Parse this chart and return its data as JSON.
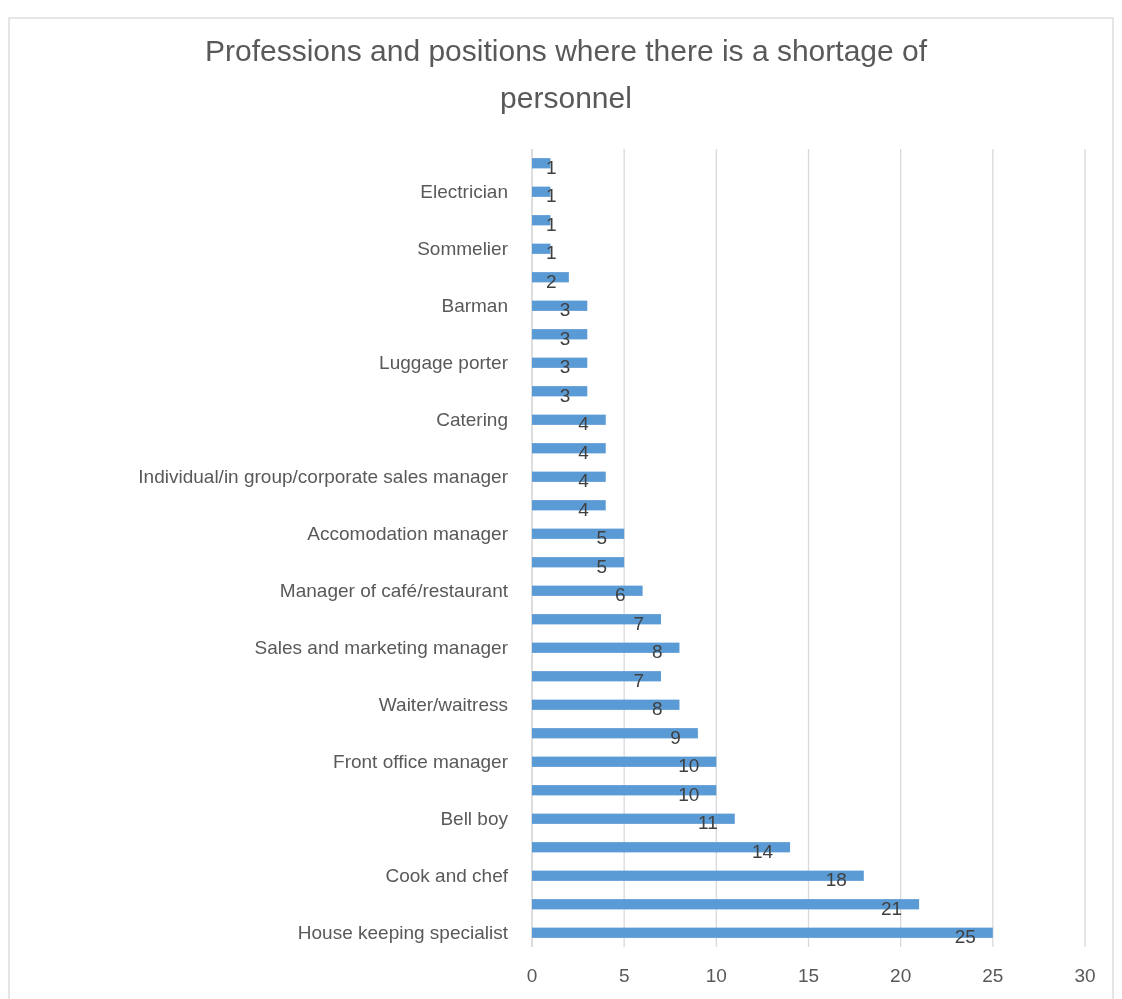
{
  "chart_data": {
    "type": "bar",
    "orientation": "horizontal",
    "title": "Professions and positions where there is a shortage of personnel",
    "categories": [
      null,
      "Electrician",
      null,
      "Sommelier",
      null,
      "Barman",
      null,
      "Luggage porter",
      null,
      "Catering",
      null,
      "Individual/in group/corporate sales manager",
      null,
      "Accomodation manager",
      null,
      "Manager of café/restaurant",
      null,
      "Sales and marketing manager",
      null,
      "Waiter/waitress",
      null,
      "Front office manager",
      null,
      "Bell boy",
      null,
      "Cook and chef",
      null,
      "House keeping specialist"
    ],
    "values": [
      1,
      1,
      1,
      1,
      2,
      3,
      3,
      3,
      3,
      4,
      4,
      4,
      4,
      5,
      5,
      6,
      7,
      8,
      7,
      8,
      9,
      10,
      10,
      11,
      14,
      18,
      21,
      25
    ],
    "color": "#5b9bd5",
    "xlim": [
      0,
      30
    ],
    "xticks": [
      0,
      5,
      10,
      15,
      20,
      25,
      30
    ],
    "grid": "x",
    "data_labels": true
  }
}
